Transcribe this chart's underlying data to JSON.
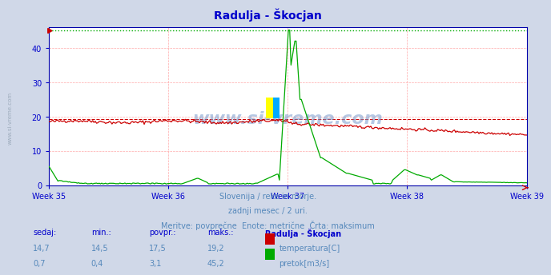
{
  "title": "Radulja - Škocjan",
  "title_color": "#0000cc",
  "bg_color": "#d0d8e8",
  "plot_bg_color": "#ffffff",
  "grid_color": "#ffaaaa",
  "xlabel_weeks": [
    "Week 35",
    "Week 36",
    "Week 37",
    "Week 38",
    "Week 39"
  ],
  "ylim": [
    0,
    46.0
  ],
  "yticks": [
    0,
    10,
    20,
    30,
    40
  ],
  "temp_color": "#cc0000",
  "flow_color": "#00aa00",
  "temp_max_line": 19.2,
  "flow_max_line": 45.2,
  "watermark": "www.si-vreme.com",
  "footer_line1": "Slovenija / reke in morje.",
  "footer_line2": "zadnji mesec / 2 uri.",
  "footer_line3": "Meritve: povprečne  Enote: metrične  Črta: maksimum",
  "footer_color": "#5588bb",
  "table_headers": [
    "sedaj:",
    "min.:",
    "povpr.:",
    "maks.:",
    "Radulja - Škocjan"
  ],
  "table_row1": [
    "14,7",
    "14,5",
    "17,5",
    "19,2"
  ],
  "table_row2": [
    "0,7",
    "0,4",
    "3,1",
    "45,2"
  ],
  "label_temp": "temperatura[C]",
  "label_flow": "pretok[m3/s]",
  "n_points": 372,
  "sidebar_text": "www.si-vreme.com",
  "axis_color": "#0000cc",
  "spine_color": "#0000aa"
}
